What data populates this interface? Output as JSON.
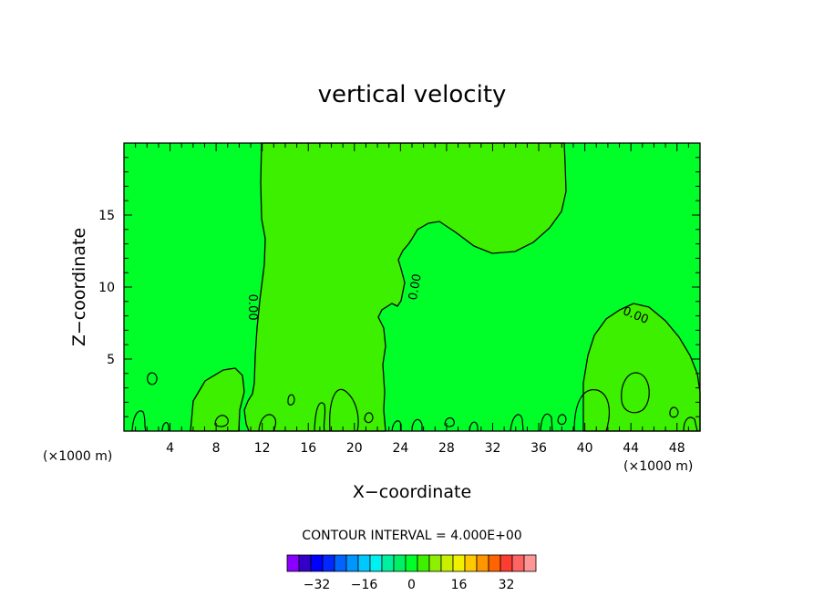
{
  "chart_data": {
    "type": "heatmap",
    "title": "vertical velocity",
    "xlabel": "X−coordinate",
    "ylabel": "Z−coordinate",
    "x_unit_left": "(×1000 m)",
    "x_unit_right": "(×1000 m)",
    "xlim": [
      0,
      50
    ],
    "ylim": [
      0,
      20
    ],
    "x_ticks": [
      4,
      8,
      12,
      16,
      20,
      24,
      28,
      32,
      36,
      40,
      44,
      48
    ],
    "x_tick_labels": [
      "4",
      "8",
      "12",
      "16",
      "20",
      "24",
      "28",
      "32",
      "36",
      "40",
      "44",
      "48"
    ],
    "y_ticks": [
      5,
      10,
      15
    ],
    "y_tick_labels": [
      "5",
      "10",
      "15"
    ],
    "background_color": "#00ff28",
    "updraft_color": "#3cf000",
    "contour_labels": [
      {
        "text": "0.00",
        "x": 11.1,
        "z": 8.6,
        "rotate": 90
      },
      {
        "text": "0.00",
        "x": 25.3,
        "z": 10.0,
        "rotate": -80
      },
      {
        "text": "0.00",
        "x": 44.4,
        "z": 8.0,
        "rotate": 22
      }
    ],
    "contour_interval_text": "CONTOUR INTERVAL = 4.000E+00",
    "colorbar": {
      "colors": [
        "#8a00ff",
        "#3400c8",
        "#0000ff",
        "#0028ff",
        "#0064ff",
        "#0096ff",
        "#00c8ff",
        "#00f0f0",
        "#00f0a0",
        "#00f064",
        "#00ff28",
        "#3cf000",
        "#8cf000",
        "#c8f000",
        "#f0f000",
        "#ffc800",
        "#ff9600",
        "#ff6400",
        "#ff3c32",
        "#ff6464",
        "#ff9696"
      ],
      "tick_values": [
        -32,
        -16,
        0,
        16,
        32
      ],
      "tick_labels": [
        "−32",
        "−16",
        "0",
        "16",
        "32"
      ]
    }
  }
}
